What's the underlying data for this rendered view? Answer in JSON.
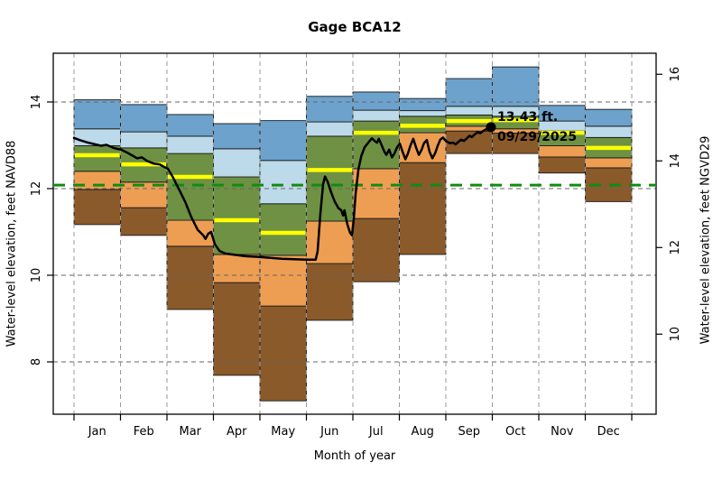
{
  "title": "Gage BCA12",
  "axes": {
    "x_label": "Month of year",
    "left_label": "Water-level elevation, feet NAVD88",
    "right_label": "Water-level elevation, feet NGVD29",
    "left_ticks": [
      8,
      10,
      12,
      14
    ],
    "right_ticks": [
      10,
      12,
      14,
      16
    ],
    "right_datum_offset": 1.36
  },
  "chart_data": {
    "type": "area",
    "subtype": "monthly-percentile-step-bands-with-current-year-line",
    "categories": [
      "Jan",
      "Feb",
      "Mar",
      "Apr",
      "May",
      "Jun",
      "Jul",
      "Aug",
      "Sep",
      "Oct",
      "Nov",
      "Dec"
    ],
    "ylabel": "Water-level elevation, feet NAVD88",
    "ylabel_right": "Water-level elevation, feet NGVD29",
    "xlabel": "Month of year",
    "title": "Gage BCA12",
    "ylim_left": [
      6.79,
      15.12
    ],
    "grid": true,
    "legend": "none",
    "series": [
      {
        "name": "minimum",
        "values": [
          11.17,
          10.92,
          9.21,
          7.69,
          7.1,
          8.96,
          9.85,
          10.48,
          12.81,
          12.81,
          12.36,
          11.7
        ]
      },
      {
        "name": "p10",
        "values": [
          11.98,
          11.56,
          10.67,
          9.83,
          9.29,
          10.27,
          11.31,
          12.6,
          13.33,
          13.28,
          12.73,
          12.48
        ]
      },
      {
        "name": "p25",
        "values": [
          12.4,
          12.15,
          11.27,
          10.48,
          10.46,
          11.25,
          12.46,
          13.29,
          13.44,
          13.38,
          12.99,
          12.71
        ]
      },
      {
        "name": "median",
        "values": [
          12.77,
          12.56,
          12.27,
          11.27,
          10.98,
          12.43,
          13.29,
          13.45,
          13.56,
          13.58,
          13.29,
          12.94
        ]
      },
      {
        "name": "p75",
        "values": [
          12.99,
          12.94,
          12.81,
          12.27,
          11.65,
          13.21,
          13.56,
          13.67,
          13.7,
          13.67,
          13.33,
          13.18
        ]
      },
      {
        "name": "p90",
        "values": [
          13.38,
          13.31,
          13.21,
          12.92,
          12.65,
          13.54,
          13.81,
          13.8,
          13.9,
          13.9,
          13.56,
          13.44
        ]
      },
      {
        "name": "maximum",
        "values": [
          14.05,
          13.94,
          13.71,
          13.5,
          13.57,
          14.13,
          14.23,
          14.08,
          14.54,
          14.81,
          13.92,
          13.83
        ]
      }
    ],
    "current_year_line": [
      [
        0.0,
        13.17
      ],
      [
        0.12,
        13.12
      ],
      [
        0.27,
        13.07
      ],
      [
        0.43,
        13.03
      ],
      [
        0.58,
        12.99
      ],
      [
        0.7,
        13.01
      ],
      [
        0.85,
        12.94
      ],
      [
        1.01,
        12.9
      ],
      [
        1.13,
        12.84
      ],
      [
        1.26,
        12.76
      ],
      [
        1.36,
        12.7
      ],
      [
        1.46,
        12.72
      ],
      [
        1.57,
        12.64
      ],
      [
        1.71,
        12.58
      ],
      [
        1.84,
        12.56
      ],
      [
        1.94,
        12.5
      ],
      [
        2.02,
        12.46
      ],
      [
        2.14,
        12.24
      ],
      [
        2.25,
        12.0
      ],
      [
        2.39,
        11.7
      ],
      [
        2.52,
        11.35
      ],
      [
        2.66,
        11.05
      ],
      [
        2.78,
        10.92
      ],
      [
        2.83,
        10.84
      ],
      [
        2.89,
        10.96
      ],
      [
        2.95,
        11.0
      ],
      [
        3.03,
        10.72
      ],
      [
        3.13,
        10.56
      ],
      [
        3.26,
        10.5
      ],
      [
        3.46,
        10.47
      ],
      [
        3.69,
        10.44
      ],
      [
        4.0,
        10.42
      ],
      [
        4.23,
        10.4
      ],
      [
        4.47,
        10.38
      ],
      [
        4.74,
        10.37
      ],
      [
        5.01,
        10.36
      ],
      [
        5.2,
        10.36
      ],
      [
        5.24,
        10.55
      ],
      [
        5.3,
        11.4
      ],
      [
        5.36,
        12.1
      ],
      [
        5.4,
        12.28
      ],
      [
        5.46,
        12.15
      ],
      [
        5.53,
        11.92
      ],
      [
        5.61,
        11.7
      ],
      [
        5.69,
        11.55
      ],
      [
        5.75,
        11.5
      ],
      [
        5.79,
        11.38
      ],
      [
        5.82,
        11.5
      ],
      [
        5.88,
        11.18
      ],
      [
        5.94,
        10.98
      ],
      [
        5.98,
        10.92
      ],
      [
        6.02,
        11.3
      ],
      [
        6.06,
        11.9
      ],
      [
        6.12,
        12.45
      ],
      [
        6.18,
        12.75
      ],
      [
        6.25,
        12.95
      ],
      [
        6.33,
        13.06
      ],
      [
        6.41,
        13.16
      ],
      [
        6.47,
        13.1
      ],
      [
        6.52,
        13.06
      ],
      [
        6.56,
        13.15
      ],
      [
        6.62,
        13.0
      ],
      [
        6.68,
        12.85
      ],
      [
        6.72,
        12.78
      ],
      [
        6.78,
        12.9
      ],
      [
        6.84,
        12.72
      ],
      [
        6.89,
        12.8
      ],
      [
        6.95,
        12.95
      ],
      [
        7.01,
        13.04
      ],
      [
        7.07,
        12.85
      ],
      [
        7.13,
        12.68
      ],
      [
        7.18,
        12.8
      ],
      [
        7.24,
        13.0
      ],
      [
        7.3,
        13.15
      ],
      [
        7.36,
        12.95
      ],
      [
        7.42,
        12.78
      ],
      [
        7.48,
        12.9
      ],
      [
        7.53,
        13.05
      ],
      [
        7.59,
        13.12
      ],
      [
        7.65,
        12.85
      ],
      [
        7.71,
        12.7
      ],
      [
        7.77,
        12.82
      ],
      [
        7.83,
        13.0
      ],
      [
        7.88,
        13.13
      ],
      [
        7.94,
        13.18
      ],
      [
        8.0,
        13.1
      ],
      [
        8.08,
        13.05
      ],
      [
        8.16,
        13.06
      ],
      [
        8.21,
        13.02
      ],
      [
        8.27,
        13.08
      ],
      [
        8.33,
        13.13
      ],
      [
        8.39,
        13.1
      ],
      [
        8.45,
        13.16
      ],
      [
        8.51,
        13.22
      ],
      [
        8.56,
        13.19
      ],
      [
        8.62,
        13.25
      ],
      [
        8.68,
        13.3
      ],
      [
        8.74,
        13.28
      ],
      [
        8.8,
        13.33
      ],
      [
        8.85,
        13.36
      ],
      [
        8.91,
        13.39
      ],
      [
        8.97,
        13.42
      ]
    ],
    "reference_line": {
      "value": 12.08,
      "style": "dashed"
    },
    "annotation": {
      "value_label": "13.43 ft.",
      "date_label": "09/29/2025",
      "month_position": 8.97,
      "elevation": 13.42
    }
  },
  "colors": {
    "band_max_p90": "#6CA2CC",
    "band_p90_p75": "#BCDAE9",
    "band_p75_p25": "#6E9143",
    "band_p25_p10": "#EE9E52",
    "band_p10_min": "#8A5A2B",
    "median_line": "#FFFF00",
    "reference_line": "#128C12",
    "current_line": "#000000",
    "grid_h": "#666666",
    "grid_v": "#999999",
    "box": "#000000",
    "background": "#FFFFFF"
  }
}
